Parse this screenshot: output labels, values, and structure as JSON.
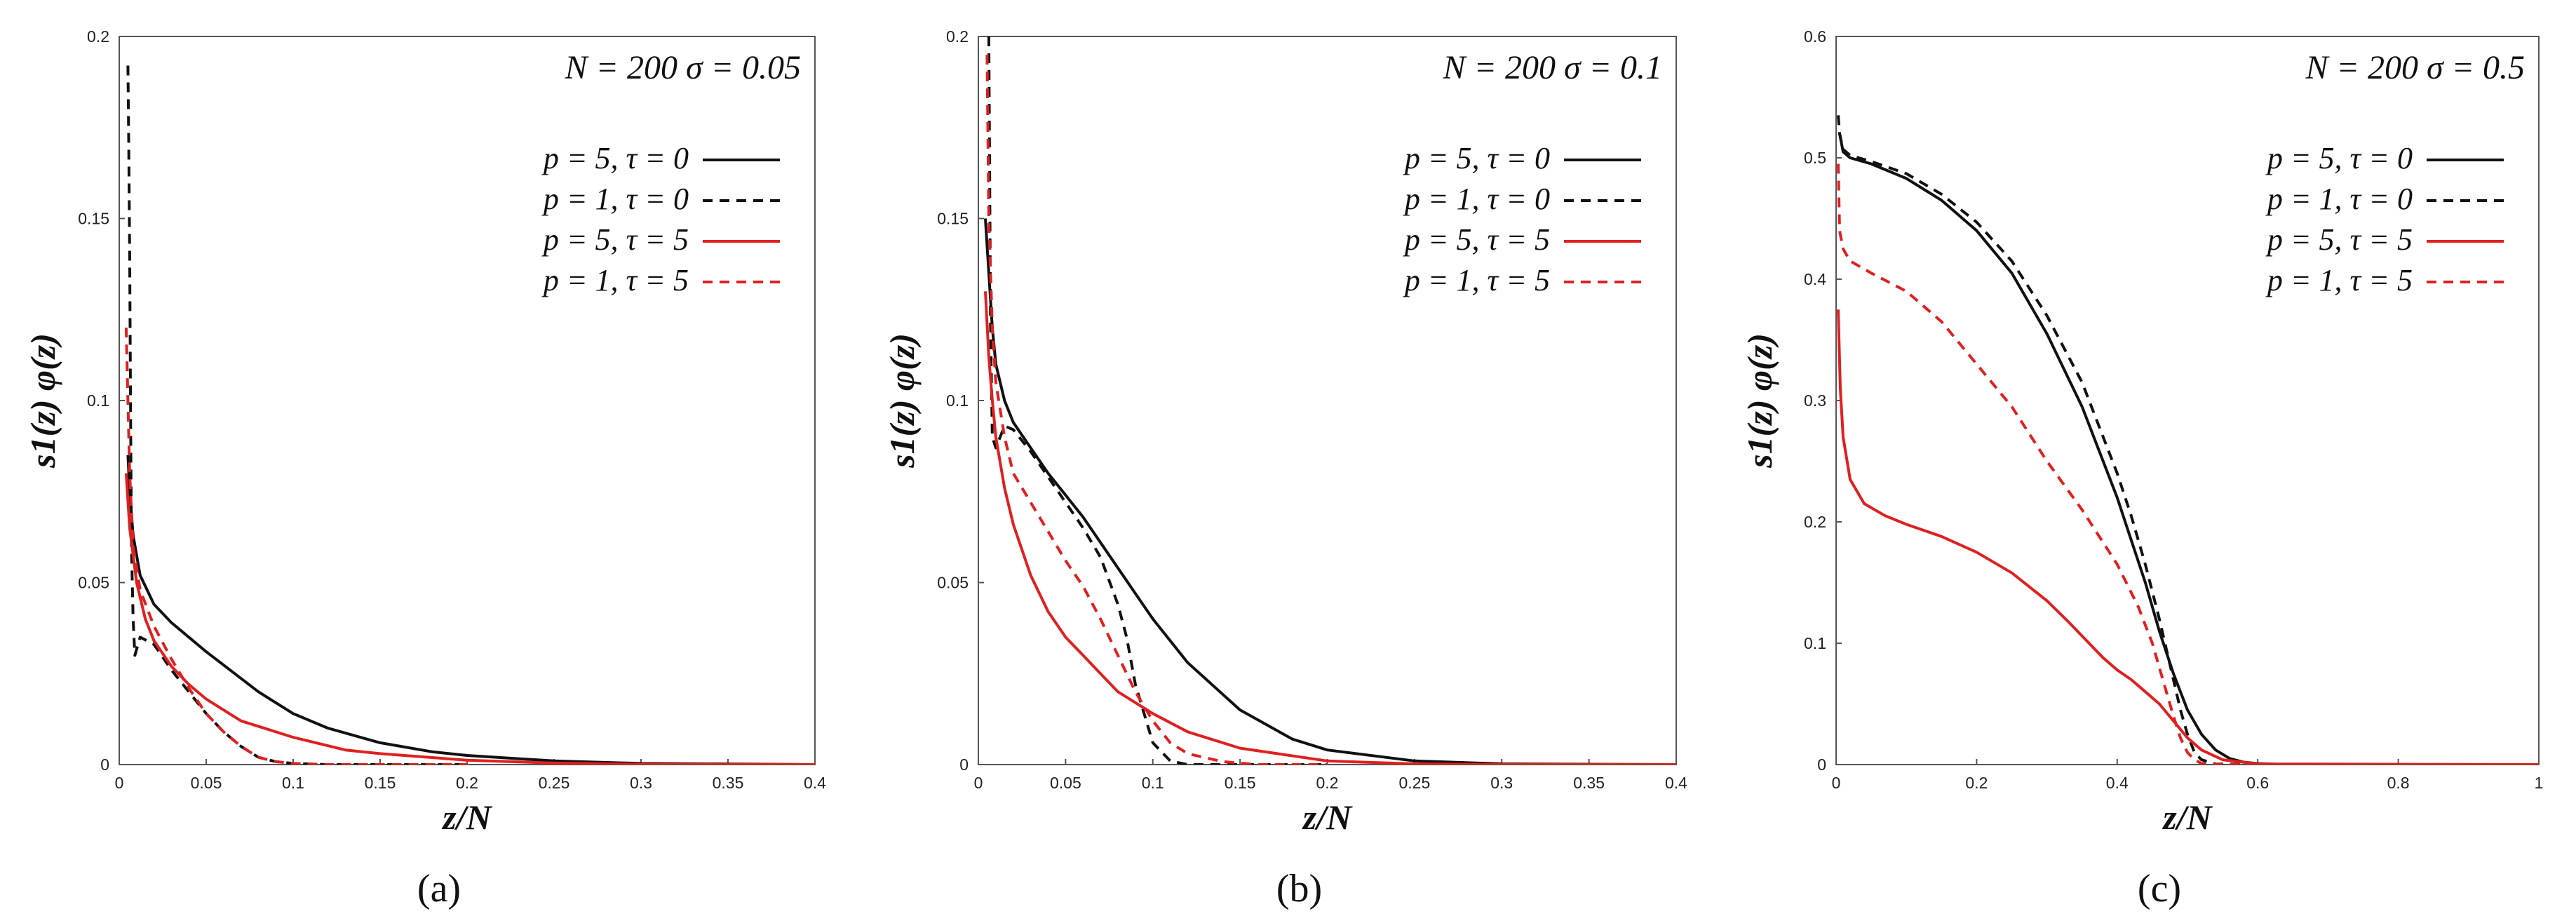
{
  "chart_data": [
    {
      "type": "line",
      "panel_label": "(a)",
      "annotation": "N = 200  σ = 0.05",
      "xlabel": "z/N",
      "ylabel": "s1(z) φ(z)",
      "xlim": [
        0,
        0.4
      ],
      "ylim": [
        0,
        0.2
      ],
      "xticks": [
        "0",
        "0.05",
        "0.1",
        "0.15",
        "0.2",
        "0.25",
        "0.3",
        "0.35",
        "0.4"
      ],
      "yticks": [
        "0",
        "0.05",
        "0.1",
        "0.15",
        "0.2"
      ],
      "legend_position": "top-right",
      "series": [
        {
          "name": "p = 5, τ = 0",
          "color": "#111111",
          "dash": "solid",
          "x": [
            0.005,
            0.006,
            0.008,
            0.012,
            0.02,
            0.03,
            0.05,
            0.08,
            0.1,
            0.12,
            0.15,
            0.18,
            0.2,
            0.25,
            0.3,
            0.4
          ],
          "y": [
            0.085,
            0.075,
            0.063,
            0.052,
            0.044,
            0.039,
            0.031,
            0.02,
            0.014,
            0.01,
            0.006,
            0.0035,
            0.0025,
            0.001,
            0.0003,
            0.0
          ]
        },
        {
          "name": "p = 1, τ = 0",
          "color": "#111111",
          "dash": "dashed",
          "x": [
            0.005,
            0.0055,
            0.006,
            0.0065,
            0.007,
            0.008,
            0.009,
            0.012,
            0.02,
            0.03,
            0.04,
            0.05,
            0.06,
            0.07,
            0.08,
            0.09,
            0.1,
            0.12,
            0.15,
            0.2
          ],
          "y": [
            0.192,
            0.17,
            0.14,
            0.1,
            0.06,
            0.04,
            0.03,
            0.035,
            0.033,
            0.026,
            0.02,
            0.014,
            0.009,
            0.005,
            0.002,
            0.0008,
            0.0003,
            0.0,
            0.0,
            0.0
          ]
        },
        {
          "name": "p = 5, τ = 5",
          "color": "#e02020",
          "dash": "solid",
          "x": [
            0.004,
            0.006,
            0.01,
            0.015,
            0.02,
            0.03,
            0.04,
            0.05,
            0.07,
            0.1,
            0.13,
            0.15,
            0.2,
            0.25,
            0.3,
            0.4
          ],
          "y": [
            0.08,
            0.065,
            0.05,
            0.04,
            0.034,
            0.027,
            0.022,
            0.018,
            0.012,
            0.0075,
            0.004,
            0.003,
            0.0012,
            0.0004,
            0.0001,
            0.0
          ]
        },
        {
          "name": "p = 1, τ = 5",
          "color": "#e02020",
          "dash": "dashed",
          "x": [
            0.004,
            0.005,
            0.006,
            0.008,
            0.012,
            0.02,
            0.03,
            0.04,
            0.05,
            0.06,
            0.07,
            0.08,
            0.09,
            0.1,
            0.12,
            0.15,
            0.2
          ],
          "y": [
            0.12,
            0.1,
            0.08,
            0.06,
            0.048,
            0.038,
            0.029,
            0.021,
            0.014,
            0.009,
            0.005,
            0.002,
            0.0008,
            0.0003,
            0.0,
            0.0,
            0.0
          ]
        }
      ]
    },
    {
      "type": "line",
      "panel_label": "(b)",
      "annotation": "N = 200  σ = 0.1",
      "xlabel": "z/N",
      "ylabel": "s1(z) φ(z)",
      "xlim": [
        0,
        0.4
      ],
      "ylim": [
        0,
        0.2
      ],
      "xticks": [
        "0",
        "0.05",
        "0.1",
        "0.15",
        "0.2",
        "0.25",
        "0.3",
        "0.35",
        "0.4"
      ],
      "yticks": [
        "0",
        "0.05",
        "0.1",
        "0.15",
        "0.2"
      ],
      "legend_position": "top-right",
      "series": [
        {
          "name": "p = 5, τ = 0",
          "color": "#111111",
          "dash": "solid",
          "x": [
            0.004,
            0.006,
            0.008,
            0.01,
            0.015,
            0.02,
            0.03,
            0.04,
            0.05,
            0.06,
            0.07,
            0.08,
            0.09,
            0.1,
            0.12,
            0.15,
            0.18,
            0.2,
            0.25,
            0.3,
            0.4
          ],
          "y": [
            0.15,
            0.135,
            0.12,
            0.11,
            0.1,
            0.094,
            0.087,
            0.08,
            0.074,
            0.068,
            0.061,
            0.054,
            0.047,
            0.04,
            0.028,
            0.015,
            0.007,
            0.004,
            0.001,
            0.0002,
            0.0
          ]
        },
        {
          "name": "p = 1, τ = 0",
          "color": "#111111",
          "dash": "dashed",
          "x": [
            0.006,
            0.0065,
            0.007,
            0.008,
            0.01,
            0.015,
            0.02,
            0.03,
            0.04,
            0.05,
            0.06,
            0.07,
            0.08,
            0.085,
            0.09,
            0.1,
            0.11,
            0.12,
            0.15,
            0.2
          ],
          "y": [
            0.2,
            0.16,
            0.12,
            0.09,
            0.087,
            0.093,
            0.092,
            0.086,
            0.079,
            0.072,
            0.065,
            0.057,
            0.044,
            0.035,
            0.022,
            0.006,
            0.001,
            0.0,
            0.0,
            0.0
          ]
        },
        {
          "name": "p = 5, τ = 5",
          "color": "#e02020",
          "dash": "solid",
          "x": [
            0.004,
            0.006,
            0.008,
            0.01,
            0.015,
            0.02,
            0.03,
            0.04,
            0.05,
            0.06,
            0.07,
            0.08,
            0.1,
            0.12,
            0.15,
            0.2,
            0.25,
            0.3,
            0.4
          ],
          "y": [
            0.13,
            0.112,
            0.1,
            0.09,
            0.076,
            0.066,
            0.052,
            0.042,
            0.035,
            0.03,
            0.025,
            0.02,
            0.014,
            0.009,
            0.0045,
            0.001,
            0.0002,
            0.0,
            0.0
          ]
        },
        {
          "name": "p = 1, τ = 5",
          "color": "#e02020",
          "dash": "dashed",
          "x": [
            0.005,
            0.006,
            0.008,
            0.01,
            0.015,
            0.02,
            0.03,
            0.04,
            0.05,
            0.06,
            0.07,
            0.08,
            0.09,
            0.1,
            0.11,
            0.12,
            0.14,
            0.16,
            0.2
          ],
          "y": [
            0.195,
            0.15,
            0.12,
            0.105,
            0.09,
            0.08,
            0.072,
            0.064,
            0.056,
            0.049,
            0.04,
            0.03,
            0.02,
            0.012,
            0.006,
            0.003,
            0.0008,
            0.0,
            0.0
          ]
        }
      ]
    },
    {
      "type": "line",
      "panel_label": "(c)",
      "annotation": "N = 200  σ = 0.5",
      "xlabel": "z/N",
      "ylabel": "s1(z) φ(z)",
      "xlim": [
        0,
        1
      ],
      "ylim": [
        0,
        0.6
      ],
      "xticks": [
        "0",
        "0.2",
        "0.4",
        "0.6",
        "0.8",
        "1"
      ],
      "yticks": [
        "0",
        "0.1",
        "0.2",
        "0.3",
        "0.4",
        "0.5",
        "0.6"
      ],
      "legend_position": "top-right",
      "series": [
        {
          "name": "p = 5, τ = 0",
          "color": "#111111",
          "dash": "solid",
          "x": [
            0.005,
            0.01,
            0.02,
            0.05,
            0.1,
            0.15,
            0.2,
            0.25,
            0.3,
            0.35,
            0.4,
            0.42,
            0.44,
            0.46,
            0.48,
            0.5,
            0.52,
            0.54,
            0.56,
            0.58,
            0.6,
            0.65,
            0.7,
            1.0
          ],
          "y": [
            0.52,
            0.505,
            0.5,
            0.495,
            0.483,
            0.465,
            0.44,
            0.405,
            0.355,
            0.295,
            0.22,
            0.185,
            0.15,
            0.11,
            0.075,
            0.045,
            0.025,
            0.012,
            0.005,
            0.002,
            0.0008,
            0.0,
            0.0,
            0.0
          ]
        },
        {
          "name": "p = 1, τ = 0",
          "color": "#111111",
          "dash": "dashed",
          "x": [
            0.003,
            0.005,
            0.01,
            0.02,
            0.05,
            0.1,
            0.15,
            0.2,
            0.25,
            0.3,
            0.35,
            0.4,
            0.42,
            0.44,
            0.46,
            0.48,
            0.49,
            0.5,
            0.51,
            0.52,
            0.54,
            0.6,
            1.0
          ],
          "y": [
            0.535,
            0.52,
            0.507,
            0.502,
            0.497,
            0.487,
            0.47,
            0.447,
            0.415,
            0.37,
            0.315,
            0.24,
            0.205,
            0.165,
            0.12,
            0.07,
            0.045,
            0.025,
            0.01,
            0.004,
            0.0005,
            0.0,
            0.0
          ]
        },
        {
          "name": "p = 5, τ = 5",
          "color": "#e02020",
          "dash": "solid",
          "x": [
            0.003,
            0.006,
            0.01,
            0.02,
            0.04,
            0.07,
            0.1,
            0.15,
            0.2,
            0.25,
            0.3,
            0.33,
            0.36,
            0.38,
            0.4,
            0.42,
            0.44,
            0.46,
            0.48,
            0.5,
            0.52,
            0.55,
            0.6,
            1.0
          ],
          "y": [
            0.375,
            0.31,
            0.27,
            0.235,
            0.215,
            0.205,
            0.198,
            0.188,
            0.175,
            0.158,
            0.135,
            0.118,
            0.1,
            0.088,
            0.078,
            0.07,
            0.06,
            0.05,
            0.036,
            0.022,
            0.012,
            0.004,
            0.0005,
            0.0
          ]
        },
        {
          "name": "p = 1, τ = 5",
          "color": "#e02020",
          "dash": "dashed",
          "x": [
            0.003,
            0.005,
            0.01,
            0.02,
            0.05,
            0.1,
            0.15,
            0.2,
            0.25,
            0.3,
            0.35,
            0.4,
            0.43,
            0.45,
            0.47,
            0.48,
            0.49,
            0.5,
            0.51,
            0.52,
            0.55,
            1.0
          ],
          "y": [
            0.495,
            0.44,
            0.425,
            0.415,
            0.405,
            0.39,
            0.365,
            0.33,
            0.295,
            0.25,
            0.21,
            0.165,
            0.13,
            0.1,
            0.06,
            0.04,
            0.022,
            0.01,
            0.004,
            0.001,
            0.0,
            0.0
          ]
        }
      ]
    }
  ]
}
